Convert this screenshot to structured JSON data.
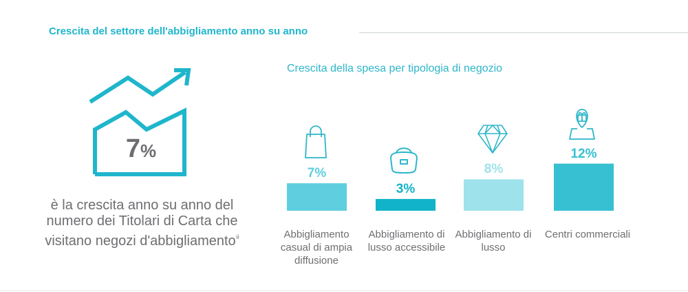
{
  "header": {
    "title": "Crescita del settore dell'abbigliamento anno su anno"
  },
  "hero": {
    "number": "7",
    "sign": "%",
    "description": "è la crescita anno su anno del numero dei Titolari di Carta che visitano negozi d'abbigliamento",
    "footnote": "ii",
    "icon": "growth-chart-house-icon"
  },
  "colors": {
    "accent": "#1fb6cc",
    "text_gray": "#6d6e71",
    "bar_1": "#5fcfdf",
    "bar_2": "#11b3c8",
    "bar_3": "#9ee2eb",
    "bar_4": "#36c0d1",
    "icon_stroke": "#2db6ca"
  },
  "chart_data": {
    "type": "bar",
    "title": "Crescita della spesa per tipologia di negozio",
    "categories": [
      "Abbigliamento casual di ampia diffusione",
      "Abbigliamento di lusso accessibile",
      "Abbigliamento di lusso",
      "Centri commerciali"
    ],
    "values": [
      7,
      3,
      8,
      12
    ],
    "value_labels": [
      "7%",
      "3%",
      "8%",
      "12%"
    ],
    "unit": "%",
    "icons": [
      "shopping-bag-icon",
      "handbag-icon",
      "diamond-icon",
      "map-pin-gift-icon"
    ],
    "xlabel": "",
    "ylabel": "",
    "ylim": [
      0,
      13
    ],
    "grid": false,
    "legend": "none"
  }
}
